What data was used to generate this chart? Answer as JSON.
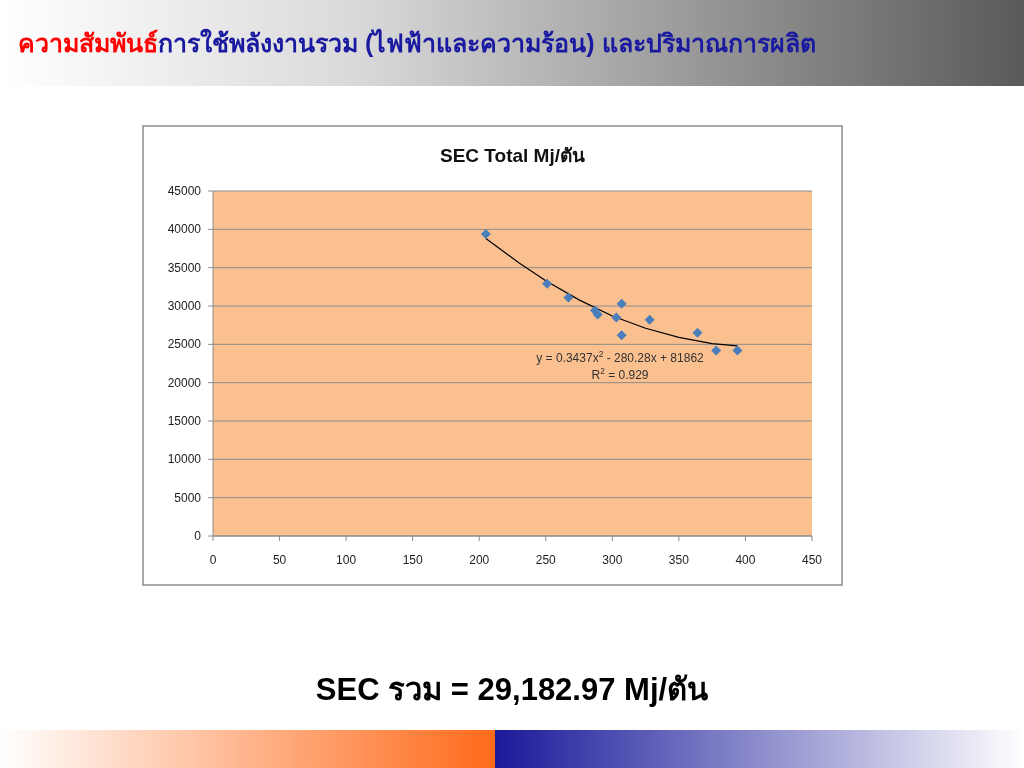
{
  "chart_data": {
    "type": "scatter",
    "title": "SEC Total Mj/ตัน",
    "annotations": [
      "ความสัมพันธ์",
      "การใช้พลังงานรวม (ไฟฟ้าและความร้อน) และปริมาณการผลิต",
      "y = 0.3437x$^{2}$ - 280.28x + 81862",
      "R$^{2}$ = 0.929",
      "SEC รวม = 29,182.97  Mj/ตัน"
    ],
    "series": [
      {
        "color": "#4a7ebb",
        "marker": "diamond",
        "x": [
          205,
          251,
          267,
          287,
          289,
          303,
          307,
          307,
          328,
          364,
          378,
          394
        ],
        "values": [
          39400,
          32900,
          31100,
          29400,
          28900,
          28500,
          30300,
          26200,
          28200,
          26500,
          24200,
          24200
        ]
      },
      {
        "type": "line",
        "color": "#000000",
        "marker": "none",
        "x": [
          205,
          230,
          250,
          275,
          300,
          325,
          350,
          375,
          394
        ],
        "values": [
          38800,
          35600,
          33300,
          30800,
          28700,
          27100,
          25900,
          25100,
          24800
        ]
      }
    ],
    "xlim": [
      0,
      450
    ],
    "xticks": [
      0,
      50,
      100,
      150,
      200,
      250,
      300,
      350,
      400,
      450
    ],
    "ylim": [
      0,
      45000
    ],
    "yticks": [
      0,
      5000,
      10000,
      15000,
      20000,
      25000,
      30000,
      35000,
      40000,
      45000
    ],
    "grid": "y"
  }
}
